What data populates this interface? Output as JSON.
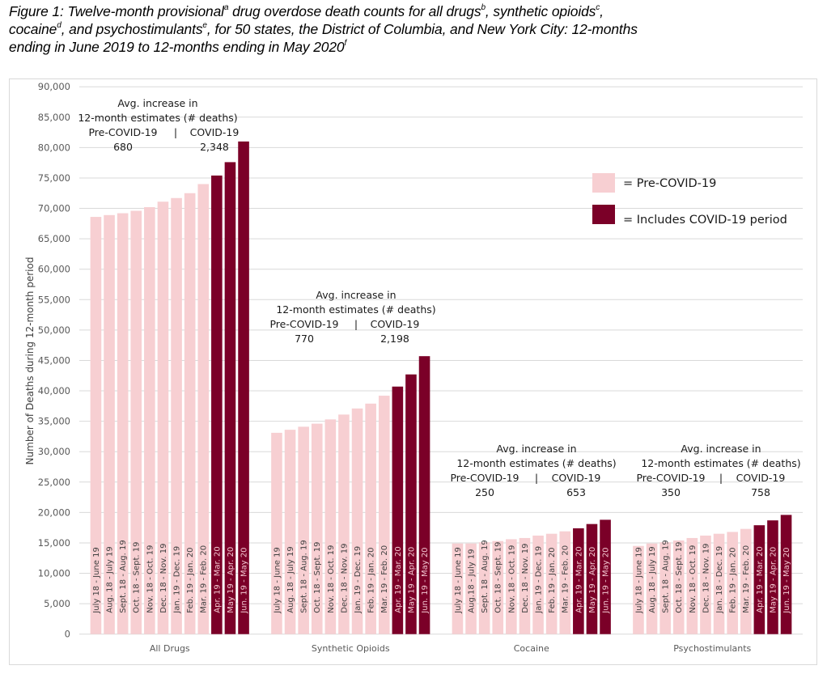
{
  "figure": {
    "title_parts": [
      {
        "t": "Figure 1: Twelve-month provisional"
      },
      {
        "sup": "a"
      },
      {
        "t": " drug overdose death counts for all drugs"
      },
      {
        "sup": "b"
      },
      {
        "t": ", synthetic opioids"
      },
      {
        "sup": "c"
      },
      {
        "t": ","
      },
      {
        "br": true
      },
      {
        "t": "cocaine"
      },
      {
        "sup": "d"
      },
      {
        "t": ", and psychostimulants"
      },
      {
        "sup": "e"
      },
      {
        "t": ", for 50 states, the District of Columbia, and New York City: 12-months"
      },
      {
        "br": true
      },
      {
        "t": "ending in June 2019 to 12-months ending in May 2020"
      },
      {
        "sup": "f"
      }
    ]
  },
  "colors": {
    "pre_covid": "#F7CFD2",
    "covid": "#7B0028",
    "pre_covid_label": "#404040",
    "covid_label": "#F2C6CF",
    "grid": "#d9d9d9"
  },
  "chart_data": {
    "type": "bar",
    "title": "Twelve-month provisional drug overdose death counts for all drugs, synthetic opioids, cocaine, and psychostimulants, for 50 states, the District of Columbia, and New York City: 12-months ending in June 2019 to 12-months ending in May 2020",
    "xlabel": "",
    "ylabel": "Number of Deaths during 12-month period",
    "ylim": [
      0,
      90000
    ],
    "yticks": [
      0,
      5000,
      10000,
      15000,
      20000,
      25000,
      30000,
      35000,
      40000,
      45000,
      50000,
      55000,
      60000,
      65000,
      70000,
      75000,
      80000,
      85000,
      90000
    ],
    "ytick_labels": [
      "0",
      "5,000",
      "10,000",
      "15,000",
      "20,000",
      "25,000",
      "30,000",
      "35,000",
      "40,000",
      "45,000",
      "50,000",
      "55,000",
      "60,000",
      "65,000",
      "70,000",
      "75,000",
      "80,000",
      "85,000",
      "90,000"
    ],
    "grid": true,
    "legend_position": "right",
    "legend": [
      {
        "label": "= Pre-COVID-19",
        "color_key": "pre_covid"
      },
      {
        "label": "= Includes COVID-19 period",
        "color_key": "covid"
      }
    ],
    "categories": [
      "All Drugs",
      "Synthetic Opioids",
      "Cocaine",
      "Psychostimulants"
    ],
    "groups": [
      {
        "name": "All Drugs",
        "bar_labels": [
          "July 18 - June 19",
          "Aug. 18 - July 19",
          "Sept. 18 - Aug. 19",
          "Oct. 18 - Sept. 19",
          "Nov. 18 - Oct. 19",
          "Dec. 18 - Nov. 19",
          "Jan. 19 - Dec. 19",
          "Feb. 19 - Jan. 20",
          "Mar. 19 - Feb. 20",
          "Apr. 19 - Mar. 20",
          "May 19 - Apr. 20",
          "Jun. 19 - May 20"
        ],
        "values": [
          68600,
          68900,
          69200,
          69600,
          70200,
          71100,
          71700,
          72500,
          74000,
          75400,
          77600,
          81000
        ],
        "covid_flags": [
          false,
          false,
          false,
          false,
          false,
          false,
          false,
          false,
          false,
          true,
          true,
          true
        ],
        "annotation": {
          "line1": "Avg. increase in",
          "line2": "12-month estimates (# deaths)",
          "pre_label": "Pre-COVID-19",
          "separator": "|",
          "covid_label": "COVID-19",
          "pre_value": "680",
          "covid_value": "2,348"
        }
      },
      {
        "name": "Synthetic Opioids",
        "bar_labels": [
          "July 18 - June 19",
          "Aug. 18 - July 19",
          "Sept. 18 - Aug. 19",
          "Oct. 18 - Sept. 19",
          "Nov. 18 - Oct. 19",
          "Dec. 18 - Nov. 19",
          "Jan. 19 - Dec. 19",
          "Feb. 19 - Jan. 20",
          "Mar. 19 - Feb. 20",
          "Apr. 19 - Mar. 20",
          "May 19 - Apr. 20",
          "Jun. 19 - May 20"
        ],
        "values": [
          33100,
          33600,
          34100,
          34600,
          35300,
          36100,
          37100,
          37900,
          39200,
          40700,
          42700,
          45700
        ],
        "covid_flags": [
          false,
          false,
          false,
          false,
          false,
          false,
          false,
          false,
          false,
          true,
          true,
          true
        ],
        "annotation": {
          "line1": "Avg. increase in",
          "line2": "12-month estimates (# deaths)",
          "pre_label": "Pre-COVID-19",
          "separator": "|",
          "covid_label": "COVID-19",
          "pre_value": "770",
          "covid_value": "2,198"
        }
      },
      {
        "name": "Cocaine",
        "bar_labels": [
          "July 18 - June 19",
          "Aug.18 - July 19",
          "Sept. 18 - Aug. 19",
          "Oct. 18 - Sept. 19",
          "Nov. 18 - Oct. 19",
          "Dec. 18 - Nov. 19",
          "Jan. 19 - Dec. 19",
          "Feb. 19 - Jan. 20",
          "Mar. 19 - Feb. 20",
          "Apr. 19 - Mar. 20",
          "May 19 - Apr. 20",
          "Jun. 19 - May 20"
        ],
        "values": [
          14900,
          14900,
          15100,
          15300,
          15600,
          15800,
          16200,
          16500,
          16900,
          17400,
          18100,
          18800
        ],
        "covid_flags": [
          false,
          false,
          false,
          false,
          false,
          false,
          false,
          false,
          false,
          true,
          true,
          true
        ],
        "annotation": {
          "line1": "Avg. increase in",
          "line2": "12-month estimates (# deaths)",
          "pre_label": "Pre-COVID-19",
          "separator": "|",
          "covid_label": "COVID-19",
          "pre_value": "250",
          "covid_value": "653"
        }
      },
      {
        "name": "Psychostimulants",
        "bar_labels": [
          "July 18 - June 19",
          "Aug. 18 - July 19",
          "Sept. 18 - Aug. 19",
          "Oct. 18 - Sept. 19",
          "Nov. 18 - Oct. 19",
          "Dec. 18 - Nov. 19",
          "Jan. 18 - Dec. 19",
          "Feb. 19 - Jan. 20",
          "Mar. 19 - Feb. 20",
          "Apr. 19 - Mar. 20",
          "May 19 - Apr. 20",
          "Jun. 19 - May 20"
        ],
        "values": [
          14500,
          14900,
          15100,
          15400,
          15800,
          16200,
          16500,
          16800,
          17300,
          17900,
          18700,
          19600
        ],
        "covid_flags": [
          false,
          false,
          false,
          false,
          false,
          false,
          false,
          false,
          false,
          true,
          true,
          true
        ],
        "annotation": {
          "line1": "Avg. increase in",
          "line2": "12-month estimates (# deaths)",
          "pre_label": "Pre-COVID-19",
          "separator": "|",
          "covid_label": "COVID-19",
          "pre_value": "350",
          "covid_value": "758"
        }
      }
    ]
  }
}
